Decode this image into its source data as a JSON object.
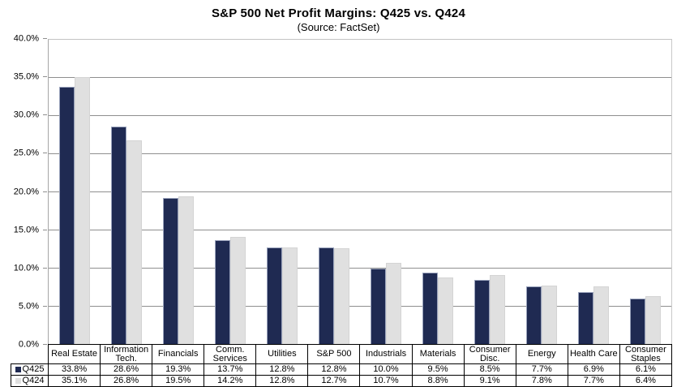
{
  "title": "S&P 500 Net Profit Margins: Q425 vs. Q424",
  "subtitle": "(Source: FactSet)",
  "colors": {
    "q425_bar": "#1F2A52",
    "q424_bar": "#E0E0E0",
    "gridline": "#8F8F8F",
    "plot_border": "#C3C3C3",
    "table_border": "#000000",
    "text": "#000000"
  },
  "chart_data": {
    "type": "bar",
    "title": "S&P 500 Net Profit Margins: Q425 vs. Q424",
    "subtitle": "(Source: FactSet)",
    "categories": [
      "Real Estate",
      "Information Tech.",
      "Financials",
      "Comm. Services",
      "Utilities",
      "S&P 500",
      "Industrials",
      "Materials",
      "Consumer Disc.",
      "Energy",
      "Health Care",
      "Consumer Staples"
    ],
    "series": [
      {
        "name": "Q425",
        "color": "#1F2A52",
        "values": [
          33.8,
          28.6,
          19.3,
          13.7,
          12.8,
          12.8,
          10.0,
          9.5,
          8.5,
          7.7,
          6.9,
          6.1
        ]
      },
      {
        "name": "Q424",
        "color": "#E0E0E0",
        "values": [
          35.1,
          26.8,
          19.5,
          14.2,
          12.8,
          12.7,
          10.7,
          8.8,
          9.1,
          7.8,
          7.7,
          6.4
        ]
      }
    ],
    "xlabel": "",
    "ylabel": "",
    "ylim": [
      0,
      40
    ],
    "ytick_step": 5,
    "ytick_labels": [
      "0.0%",
      "5.0%",
      "10.0%",
      "15.0%",
      "20.0%",
      "25.0%",
      "30.0%",
      "35.0%",
      "40.0%"
    ],
    "value_suffix": "%",
    "grid": true,
    "legend_position": "table-left",
    "legend_entries": [
      "Q425",
      "Q424"
    ]
  }
}
